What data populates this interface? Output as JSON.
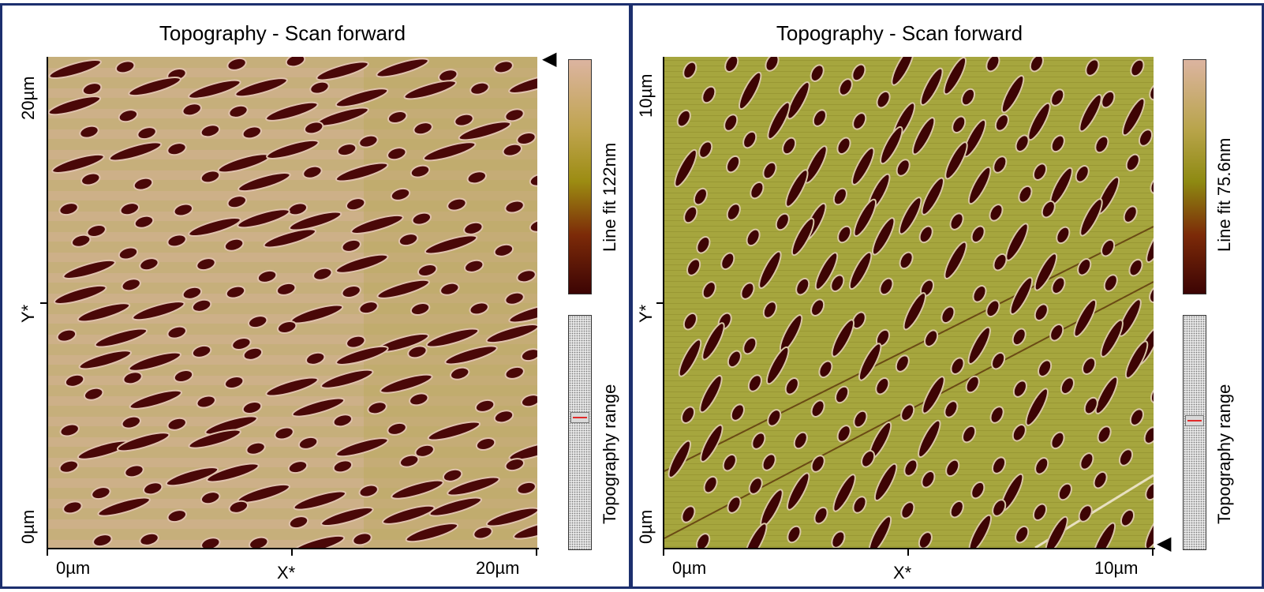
{
  "panels": [
    {
      "title": "Topography - Scan forward",
      "y_top": "20µm",
      "y_mid": "Y*",
      "y_bottom": "0µm",
      "x_left": "0µm",
      "x_mid": "X*",
      "x_right": "20µm",
      "colorbar_label": "Line fit 122nm",
      "range_label": "Topography range",
      "pointer": "◀",
      "colors": {
        "high": "#dcb4a0",
        "mid": "#b4a04a",
        "low": "#4a0808",
        "bg": "#c4ac7a"
      }
    },
    {
      "title": "Topography - Scan forward",
      "y_top": "10µm",
      "y_mid": "Y*",
      "y_bottom": "0µm",
      "x_left": "0µm",
      "x_mid": "X*",
      "x_right": "10µm",
      "colorbar_label": "Line fit 75.6nm",
      "range_label": "Topography range",
      "pointer": "◀",
      "colors": {
        "high": "#dcb4a0",
        "mid": "#9ca036",
        "low": "#4a0808",
        "bg": "#a4a43c"
      }
    }
  ]
}
